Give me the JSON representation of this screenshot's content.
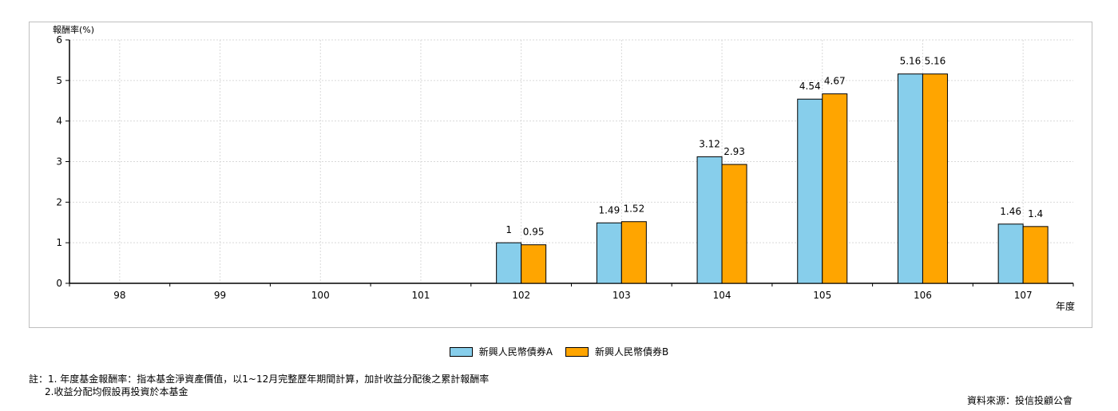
{
  "chart_data": {
    "type": "bar",
    "ylabel": "報酬率(%)",
    "xlabel": "年度",
    "categories": [
      "98",
      "99",
      "100",
      "101",
      "102",
      "103",
      "104",
      "105",
      "106",
      "107"
    ],
    "ylim": [
      0,
      6
    ],
    "yticks": [
      "0",
      "1",
      "2",
      "3",
      "4",
      "5",
      "6"
    ],
    "grid": true,
    "legend_position": "bottom",
    "series": [
      {
        "name": "新興人民幣債券A",
        "color": "#87ceeb",
        "values": [
          null,
          null,
          null,
          null,
          1,
          1.49,
          3.12,
          4.54,
          5.16,
          1.46
        ]
      },
      {
        "name": "新興人民幣債券B",
        "color": "#ffa500",
        "values": [
          null,
          null,
          null,
          null,
          0.95,
          1.52,
          2.93,
          4.67,
          5.16,
          1.4
        ]
      }
    ]
  },
  "legend": {
    "a_label": "新興人民幣債券A",
    "b_label": "新興人民幣債券B",
    "a_color": "#87ceeb",
    "b_color": "#ffa500"
  },
  "notes": {
    "line1": "註：1. 年度基金報酬率：指本基金淨資產價值，以1~12月完整歷年期間計算，加計收益分配後之累計報酬率",
    "line2": "2.收益分配均假設再投資於本基金"
  },
  "source": "資料來源：投信投顧公會"
}
